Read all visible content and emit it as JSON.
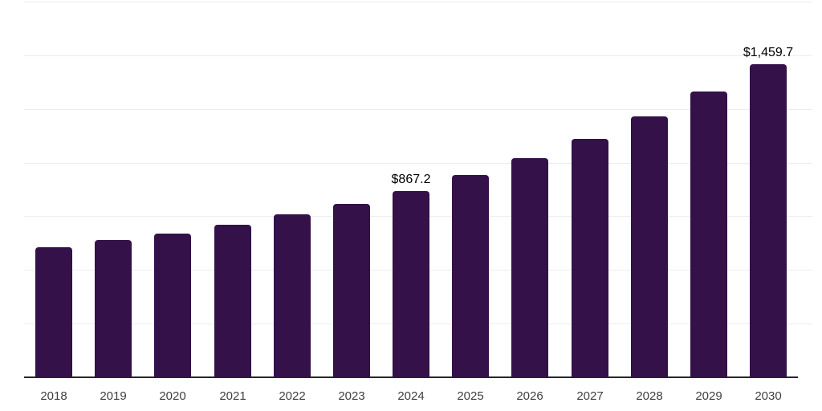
{
  "chart_data": {
    "type": "bar",
    "title": "",
    "xlabel": "",
    "ylabel": "",
    "categories": [
      "2018",
      "2019",
      "2020",
      "2021",
      "2022",
      "2023",
      "2024",
      "2025",
      "2026",
      "2027",
      "2028",
      "2029",
      "2030"
    ],
    "values": [
      607,
      638,
      668,
      709,
      758,
      806,
      867.2,
      941,
      1019,
      1112,
      1217,
      1333,
      1459.7
    ],
    "data_labels": [
      "",
      "",
      "",
      "",
      "",
      "",
      "$867.2",
      "",
      "",
      "",
      "",
      "",
      "$1,459.7"
    ],
    "ylim": [
      0,
      1750
    ],
    "grid_step": 250,
    "grid": true,
    "legend_position": "none",
    "y_axis_tick_labels_visible": false,
    "colors": {
      "bar": "#341149",
      "gridline": "#ededed",
      "axis_line": "#262626",
      "tick_label": "#3f3f3f",
      "value_label": "#000000",
      "background": "#ffffff"
    }
  }
}
